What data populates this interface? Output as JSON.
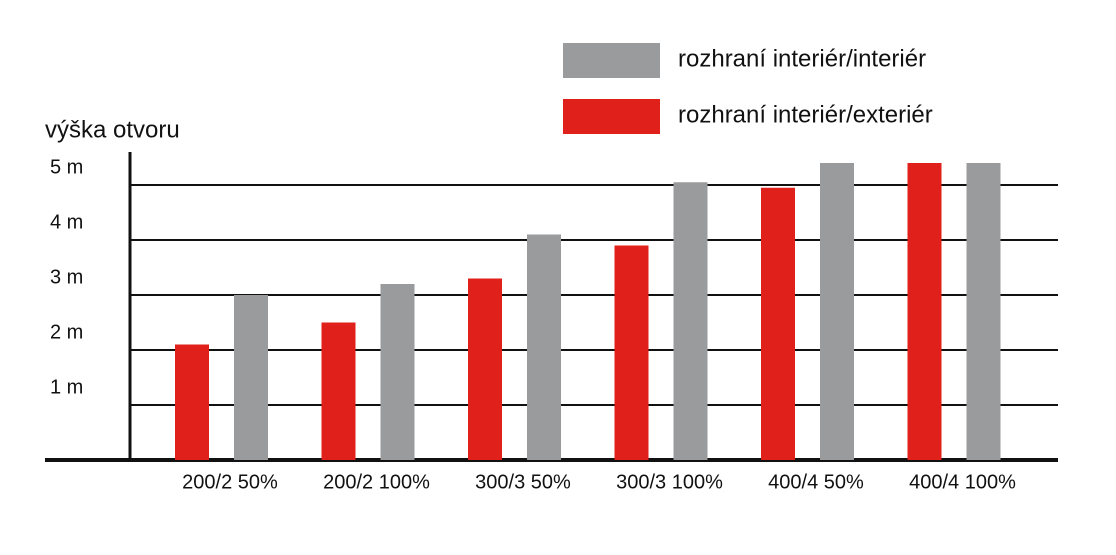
{
  "chart_data": {
    "type": "bar",
    "y_label": "výška otvoru",
    "categories": [
      "200/2 50%",
      "200/2 100%",
      "300/3 50%",
      "300/3 100%",
      "400/4 50%",
      "400/4 100%"
    ],
    "series": [
      {
        "name": "rozhraní interiér/exteriér",
        "color": "#e0201b",
        "values": [
          2.1,
          2.5,
          3.3,
          3.9,
          4.95,
          5.4
        ]
      },
      {
        "name": "rozhraní interiér/interiér",
        "color": "#9a9b9d",
        "values": [
          3.0,
          3.2,
          4.1,
          5.05,
          5.4,
          5.4
        ]
      }
    ],
    "ylim": [
      0,
      5.6
    ],
    "yticks": [
      {
        "value": 1,
        "label": "1 m"
      },
      {
        "value": 2,
        "label": "2 m"
      },
      {
        "value": 3,
        "label": "3 m"
      },
      {
        "value": 4,
        "label": "4 m"
      },
      {
        "value": 5,
        "label": "5 m"
      }
    ],
    "grid": true
  }
}
